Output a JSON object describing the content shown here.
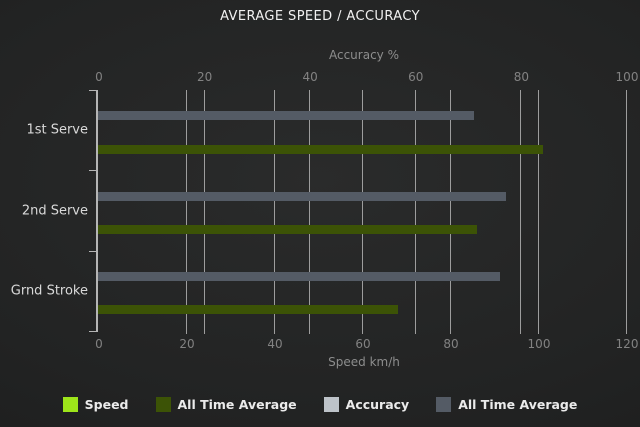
{
  "title": "AVERAGE SPEED / ACCURACY",
  "chart_data": {
    "type": "bar",
    "orientation": "horizontal",
    "categories": [
      "1st Serve",
      "2nd Serve",
      "Grnd Stroke"
    ],
    "axes": {
      "top": {
        "label": "Accuracy %",
        "min": 0,
        "max": 100,
        "ticks": [
          0,
          20,
          40,
          60,
          80,
          100
        ]
      },
      "bottom": {
        "label": "Speed km/h",
        "min": 0,
        "max": 120,
        "ticks": [
          0,
          20,
          40,
          60,
          80,
          100,
          120
        ]
      }
    },
    "series": [
      {
        "name": "Speed",
        "axis": "bottom",
        "color": "#9de51a",
        "values": [
          null,
          null,
          null
        ]
      },
      {
        "name": "All Time Average",
        "axis": "bottom",
        "color": "#3c5306",
        "values": [
          101,
          86,
          68
        ]
      },
      {
        "name": "Accuracy",
        "axis": "top",
        "color": "#bdc3c9",
        "values": [
          null,
          null,
          null
        ]
      },
      {
        "name": "All Time Average",
        "axis": "top",
        "color": "#545b65",
        "values": [
          71,
          77,
          76
        ]
      }
    ],
    "legend_position": "bottom",
    "grid": true,
    "background_color": "#222323",
    "grid_color": "#9d9d9d"
  }
}
